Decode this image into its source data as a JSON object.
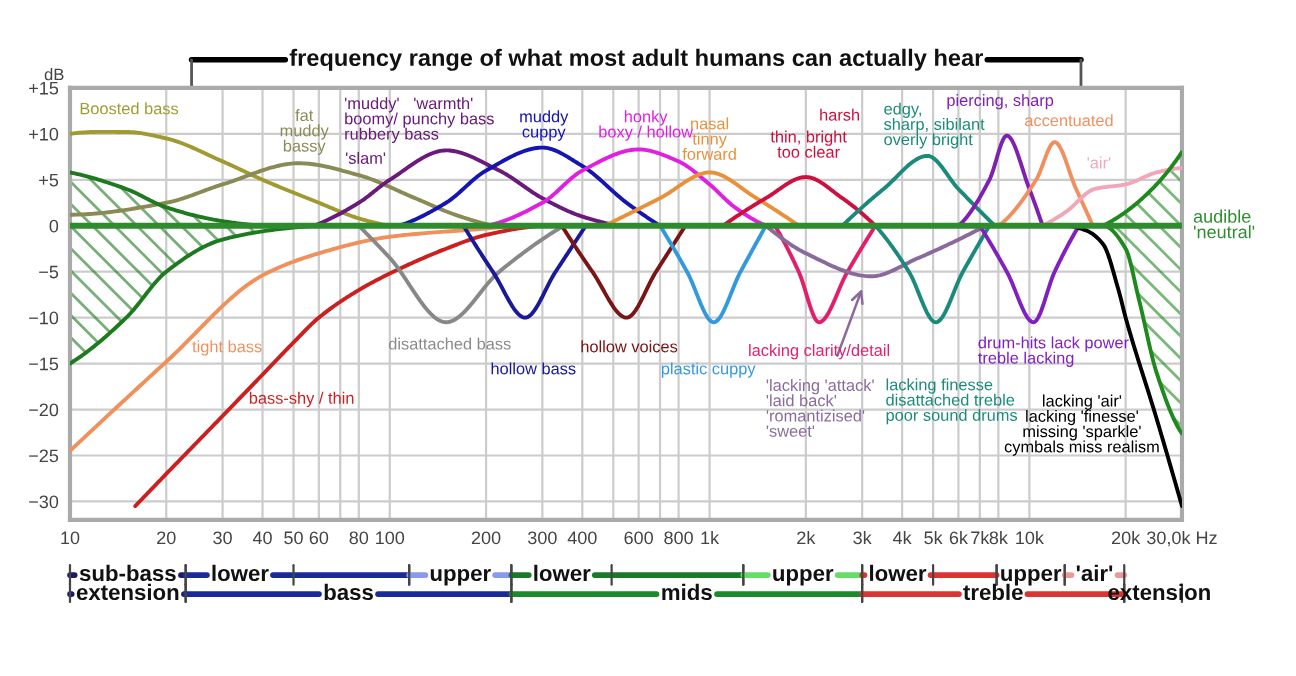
{
  "chart_data": {
    "type": "line",
    "ylabel": "dB",
    "log": "x",
    "grid": true,
    "xlim": [
      10,
      30000
    ],
    "ylim": [
      -32,
      15
    ],
    "xticks": [
      10,
      20,
      30,
      40,
      50,
      60,
      {
        "value": 70,
        "label": null
      },
      80,
      100,
      200,
      300,
      400,
      {
        "value": 500,
        "label": null
      },
      600,
      {
        "value": 700,
        "label": null
      },
      800,
      {
        "value": 1000,
        "label": "1k"
      },
      {
        "value": 2000,
        "label": "2k"
      },
      {
        "value": 3000,
        "label": "3k"
      },
      {
        "value": 4000,
        "label": "4k"
      },
      {
        "value": 5000,
        "label": "5k"
      },
      {
        "value": 6000,
        "label": "6k"
      },
      {
        "value": 7000,
        "label": "7k"
      },
      {
        "value": 8000,
        "label": "8k"
      },
      {
        "value": 10000,
        "label": "10k"
      },
      {
        "value": 20000,
        "label": "20k"
      },
      {
        "value": 30000,
        "label": "30,0k Hz"
      }
    ],
    "yticks": [
      {
        "value": 15,
        "label": "+15"
      },
      {
        "value": 10,
        "label": "+10"
      },
      {
        "value": 5,
        "label": "+5"
      },
      0,
      {
        "value": -5,
        "label": "−5"
      },
      {
        "value": -10,
        "label": "−10"
      },
      {
        "value": -15,
        "label": "−15"
      },
      {
        "value": -20,
        "label": "−20"
      },
      {
        "value": -25,
        "label": "−25"
      },
      {
        "value": -30,
        "label": "−30"
      }
    ],
    "series": [
      {
        "color": "#a09a30",
        "x": [
          10,
          15,
          20,
          30,
          40,
          60,
          80,
          100
        ],
        "values": [
          10,
          10.2,
          9.5,
          7,
          5,
          2.5,
          0.8,
          0
        ]
      },
      {
        "color": "#8a8a55",
        "x": [
          10,
          20,
          30,
          52,
          80,
          120,
          160,
          210
        ],
        "values": [
          1.2,
          2.5,
          4.5,
          6.8,
          5.5,
          3,
          1.2,
          0
        ]
      },
      {
        "type": "area",
        "color": "#1e7a1e",
        "x": [
          10,
          15,
          20,
          30,
          40
        ],
        "values": [
          5.8,
          4,
          2,
          0.5,
          0
        ]
      },
      {
        "type": "area",
        "color": "#1e7a1e",
        "x": [
          10,
          15,
          20,
          30,
          50,
          60
        ],
        "values": [
          -15,
          -10,
          -5,
          -1.5,
          -0.2,
          0
        ]
      },
      {
        "color": "#f0905a",
        "x": [
          10,
          20,
          40,
          60,
          100,
          200,
          250
        ],
        "values": [
          -24.5,
          -14.8,
          -5.4,
          -3,
          -1.2,
          -0.3,
          0
        ]
      },
      {
        "color": "#cc2020",
        "x": [
          16,
          20,
          30,
          40,
          50,
          60,
          80,
          100,
          150,
          200,
          300
        ],
        "values": [
          -30.5,
          -27,
          -20.7,
          -16.2,
          -12.7,
          -10,
          -7,
          -5.2,
          -2.5,
          -1,
          0
        ]
      },
      {
        "color": "#6a1a7a",
        "x": [
          58,
          80,
          100,
          150,
          220,
          300,
          400,
          525
        ],
        "values": [
          0,
          2.5,
          5,
          8.2,
          6,
          3,
          1,
          0
        ]
      },
      {
        "color": "#1515b0",
        "x": [
          107,
          150,
          200,
          300,
          400,
          550,
          700
        ],
        "values": [
          0,
          2.5,
          6,
          8.5,
          6.5,
          2.5,
          0
        ]
      },
      {
        "color": "#e020e0",
        "x": [
          200,
          300,
          400,
          600,
          800,
          1000,
          1200,
          1500
        ],
        "values": [
          0,
          2.5,
          6,
          8.3,
          7,
          4.5,
          2,
          0
        ]
      },
      {
        "color": "#e8903a",
        "x": [
          470,
          700,
          1000,
          1400,
          1900
        ],
        "values": [
          0,
          3,
          5.8,
          3,
          0
        ]
      },
      {
        "color": "#cc1040",
        "x": [
          1100,
          1500,
          2000,
          2600,
          3300
        ],
        "values": [
          0,
          3,
          5.3,
          3,
          0
        ]
      },
      {
        "color": "#1a8a7a",
        "x": [
          2600,
          3500,
          4800,
          6000,
          7800
        ],
        "values": [
          0,
          4,
          7.6,
          4,
          0
        ]
      },
      {
        "color": "#8020b0",
        "x": [
          6000,
          7500,
          8500,
          10000,
          11000
        ],
        "values": [
          0,
          5,
          9.8,
          4,
          0
        ]
      },
      {
        "color": "#f09060",
        "x": [
          8000,
          10500,
          12000,
          14000,
          15800
        ],
        "values": [
          0,
          5,
          9.1,
          4,
          0
        ]
      },
      {
        "color": "#f0a8b8",
        "x": [
          11000,
          13000,
          16000,
          20000,
          25000,
          30000
        ],
        "values": [
          0,
          1.5,
          4,
          4.5,
          5.8,
          6.3
        ]
      },
      {
        "type": "area",
        "color": "#1e8a1e",
        "x": [
          17000,
          20000,
          25000,
          30000
        ],
        "values": [
          0,
          1.5,
          4.5,
          8
        ]
      },
      {
        "type": "area",
        "color": "#1e8a1e",
        "x": [
          17000,
          20000,
          22000,
          25000,
          30000
        ],
        "values": [
          0,
          -2.5,
          -8,
          -16,
          -22.6
        ]
      },
      {
        "color": "#888888",
        "x": [
          80,
          100,
          150,
          220,
          350
        ],
        "values": [
          0,
          -3.5,
          -10.5,
          -5,
          0
        ]
      },
      {
        "color": "#1a1a99",
        "x": [
          170,
          210,
          265,
          330,
          410
        ],
        "values": [
          0,
          -5,
          -10,
          -5,
          0
        ]
      },
      {
        "color": "#7a1515",
        "x": [
          345,
          430,
          550,
          680,
          840
        ],
        "values": [
          0,
          -5,
          -10,
          -5,
          0
        ]
      },
      {
        "color": "#3399dd",
        "x": [
          700,
          850,
          1030,
          1250,
          1500
        ],
        "values": [
          0,
          -5,
          -10.5,
          -5,
          0
        ]
      },
      {
        "color": "#e0206a",
        "x": [
          1600,
          1900,
          2200,
          2700,
          3300
        ],
        "values": [
          0,
          -5,
          -10.5,
          -5,
          0
        ]
      },
      {
        "color": "#8a6a9a",
        "x": [
          1500,
          2000,
          3200,
          4500,
          7300
        ],
        "values": [
          0,
          -3,
          -5.5,
          -3.5,
          0
        ]
      },
      {
        "color": "#1a8a7a",
        "x": [
          3300,
          4200,
          5100,
          6200,
          7500
        ],
        "values": [
          0,
          -5,
          -10.5,
          -5,
          0
        ]
      },
      {
        "color": "#8020c0",
        "x": [
          7000,
          8500,
          10300,
          12000,
          14300
        ],
        "values": [
          0,
          -5,
          -10.5,
          -5,
          0
        ]
      },
      {
        "color": "#000000",
        "x": [
          13000,
          15000,
          17000,
          19000,
          20000,
          25000,
          30000
        ],
        "values": [
          0,
          -0.5,
          -2,
          -7,
          -10,
          -21,
          -30.5
        ]
      }
    ],
    "ref_lines": [
      {
        "axis": "y",
        "value": 0,
        "label": "audible\n'neutral'",
        "color": "#2e8b2e"
      }
    ],
    "annotations": [
      "Boosted bass",
      "fat\nmuddy\nbassy",
      "'muddy'   'warmth'\nboomy/ punchy bass\nrubbery bass",
      "'slam'",
      "muddy\ncuppy",
      "honky\nboxy / hollow",
      "nasal\ntinny\nforward",
      "thin, bright\ntoo clear",
      "harsh",
      "edgy,\nsharp, sibilant\noverly bright",
      "piercing, sharp",
      "accentuated",
      "'air'",
      "tight bass",
      "bass-shy / thin",
      "disattached bass",
      "hollow bass",
      "hollow voices",
      "plastic cuppy",
      "lacking clarity/detail",
      "'lacking 'attack'\n'laid back'\n'romantizised'\n'sweet'",
      "lacking finesse\ndisattached treble\npoor sound drums",
      "drum-hits lack power\ntreble lacking",
      "lacking 'air'\nlacking 'finesse'\nmissing 'sparkle'\ncymbals miss realism",
      "frequency range of what most adult humans can actually hear",
      "sub-bass",
      "lower",
      "upper",
      "lower",
      "upper",
      "lower",
      "upper",
      "'air'",
      "extension",
      "bass",
      "mids",
      "treble",
      "extension"
    ]
  }
}
